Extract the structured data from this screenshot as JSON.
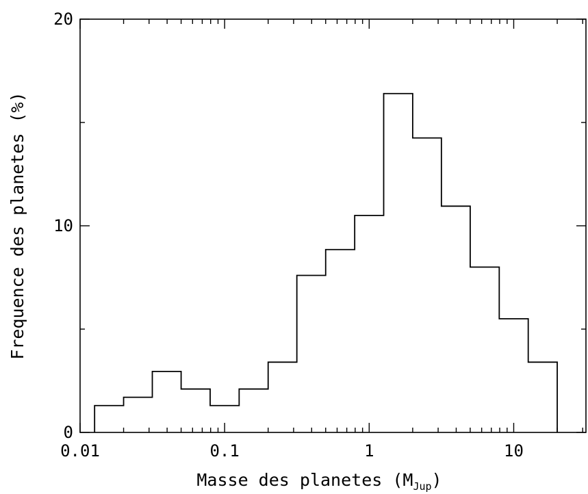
{
  "chart_data": {
    "type": "bar",
    "xscale": "log",
    "xlim": [
      0.01,
      31.6
    ],
    "ylim": [
      0,
      20
    ],
    "xlabel": "Masse des planetes (M",
    "xlabel_sub": "Jup",
    "xlabel_close": ")",
    "ylabel": "Frequence des planetes (%)",
    "x_tick_labels": [
      {
        "value": 0.01,
        "label": "0.01"
      },
      {
        "value": 0.1,
        "label": "0.1"
      },
      {
        "value": 1,
        "label": "1"
      },
      {
        "value": 10,
        "label": "10"
      }
    ],
    "y_tick_labels": [
      {
        "value": 0,
        "label": "0"
      },
      {
        "value": 10,
        "label": "10"
      },
      {
        "value": 20,
        "label": "20"
      }
    ],
    "bins": [
      {
        "x_min": 0.0126,
        "x_max": 0.02,
        "value": 1.3
      },
      {
        "x_min": 0.02,
        "x_max": 0.0316,
        "value": 1.7
      },
      {
        "x_min": 0.0316,
        "x_max": 0.05,
        "value": 2.95
      },
      {
        "x_min": 0.05,
        "x_max": 0.0794,
        "value": 2.1
      },
      {
        "x_min": 0.0794,
        "x_max": 0.126,
        "value": 1.3
      },
      {
        "x_min": 0.126,
        "x_max": 0.2,
        "value": 2.1
      },
      {
        "x_min": 0.2,
        "x_max": 0.316,
        "value": 3.4
      },
      {
        "x_min": 0.316,
        "x_max": 0.5,
        "value": 7.6
      },
      {
        "x_min": 0.5,
        "x_max": 0.794,
        "value": 8.85
      },
      {
        "x_min": 0.794,
        "x_max": 1.26,
        "value": 10.5
      },
      {
        "x_min": 1.26,
        "x_max": 2.0,
        "value": 16.4
      },
      {
        "x_min": 2.0,
        "x_max": 3.16,
        "value": 14.25
      },
      {
        "x_min": 3.16,
        "x_max": 5.0,
        "value": 10.95
      },
      {
        "x_min": 5.0,
        "x_max": 7.94,
        "value": 8.0
      },
      {
        "x_min": 7.94,
        "x_max": 12.6,
        "value": 5.5
      },
      {
        "x_min": 12.6,
        "x_max": 20.0,
        "value": 3.4
      }
    ],
    "grid": false,
    "legend": "none"
  }
}
